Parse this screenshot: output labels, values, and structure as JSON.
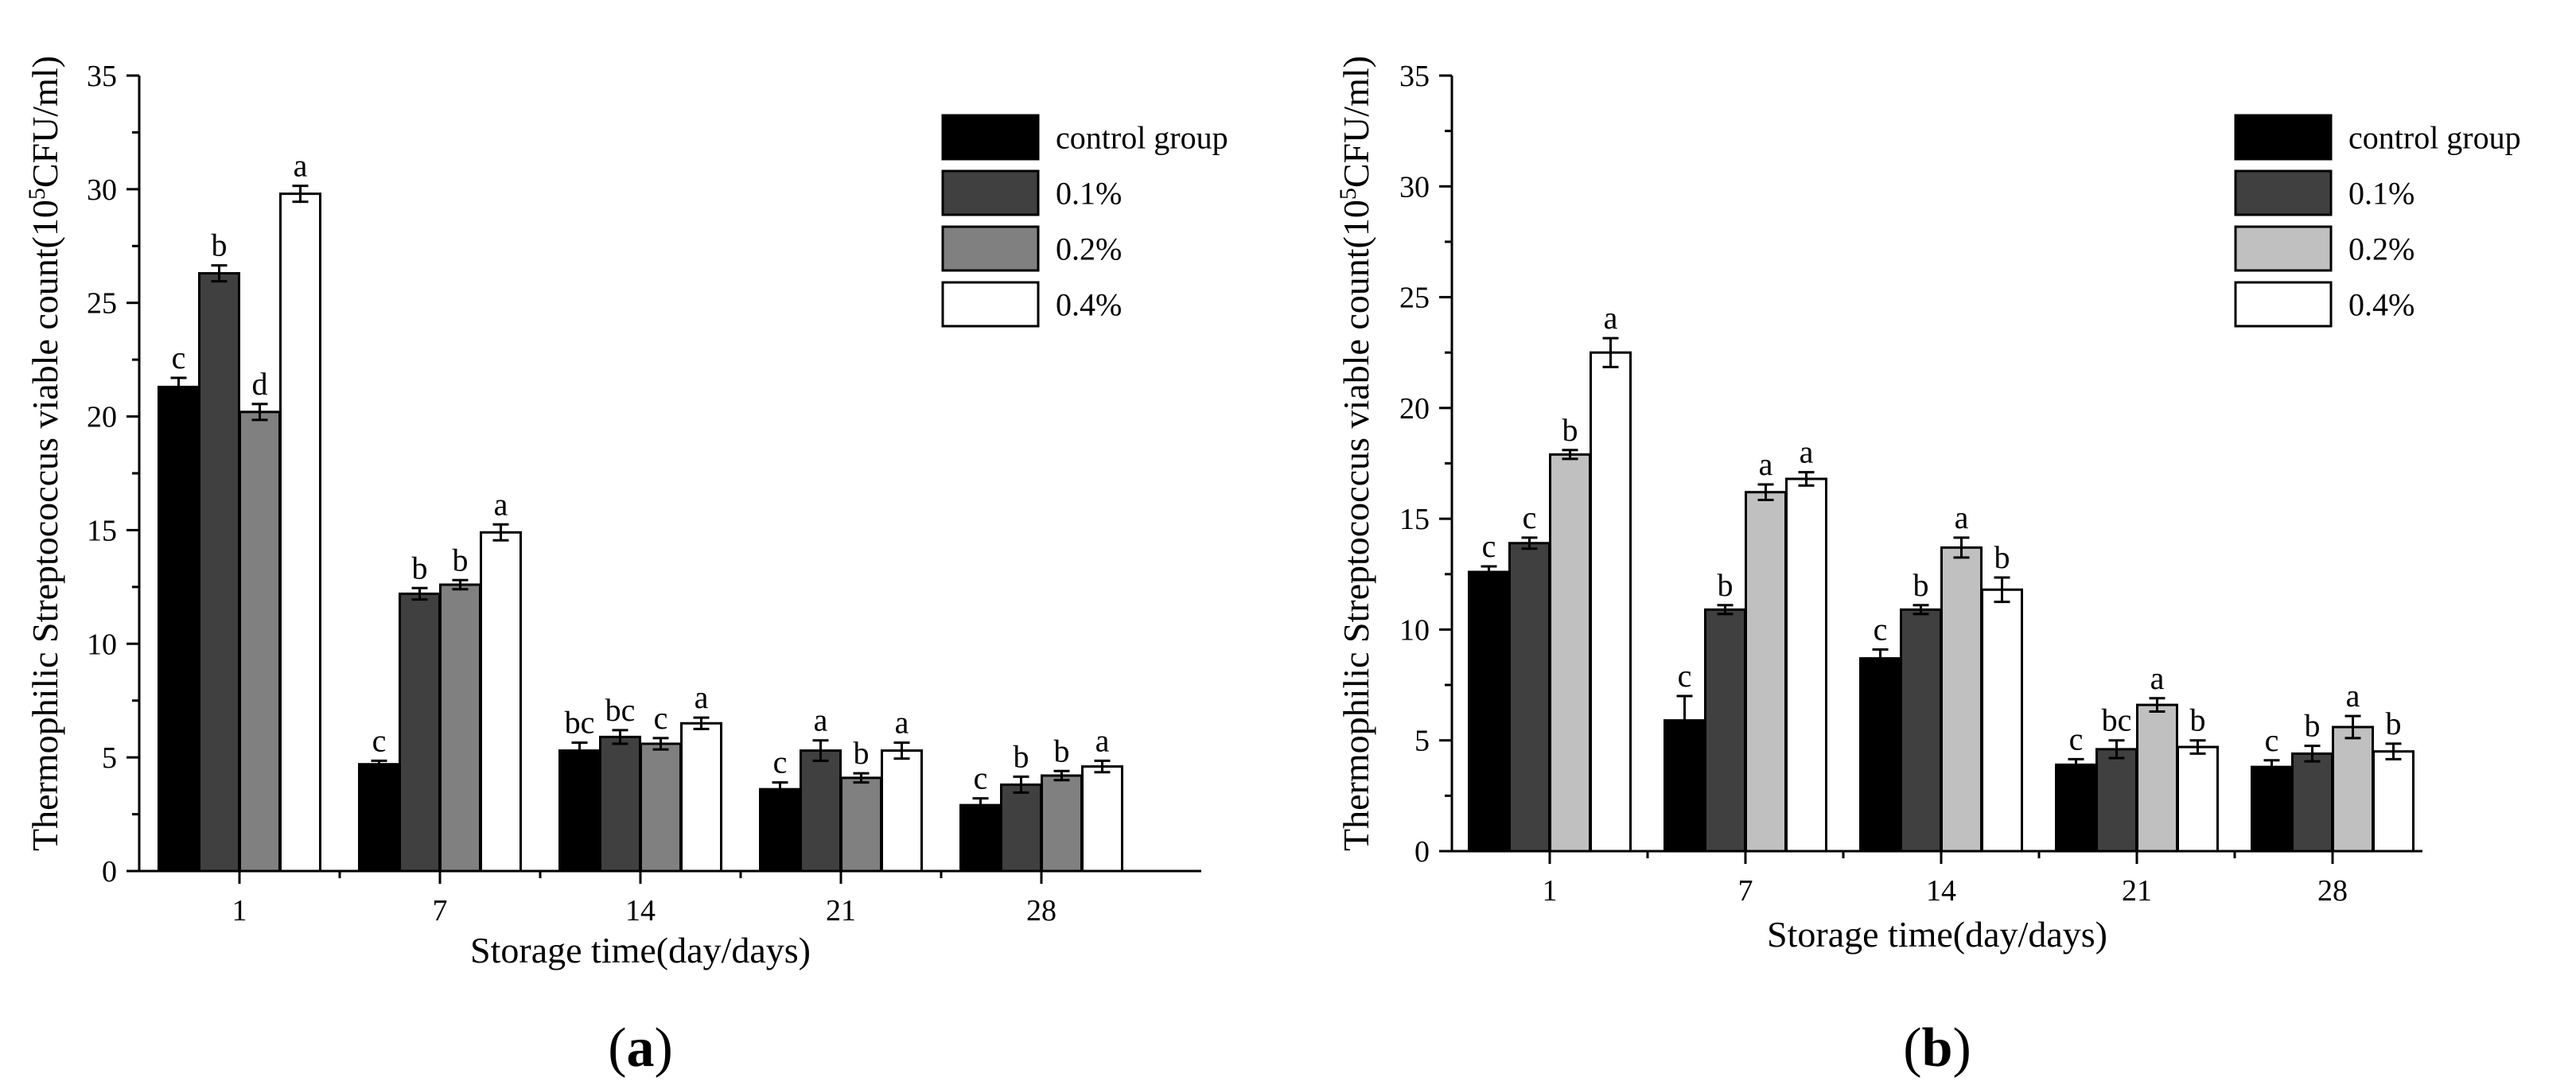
{
  "chart_data": [
    {
      "type": "bar",
      "panel_label": "a",
      "title": "",
      "xlabel": "Storage time(day/days)",
      "ylabel_pre": "Thermophilic Streptococcus viable count(10",
      "ylabel_sup": "5",
      "ylabel_post": "CFU/ml)",
      "ylim": [
        0,
        35
      ],
      "yticks": [
        "0",
        "5",
        "10",
        "15",
        "20",
        "25",
        "30",
        "35"
      ],
      "categories": [
        "1",
        "7",
        "14",
        "21",
        "28"
      ],
      "legend_position": "top-right",
      "series": [
        {
          "name": "control group",
          "color": "#000000",
          "values": [
            21.3,
            4.7,
            5.3,
            3.6,
            2.9
          ],
          "errors": [
            0.4,
            0.15,
            0.35,
            0.3,
            0.3
          ],
          "letters": [
            "c",
            "c",
            "bc",
            "c",
            "c"
          ]
        },
        {
          "name": "0.1%",
          "color": "#404040",
          "values": [
            26.3,
            12.2,
            5.9,
            5.3,
            3.8
          ],
          "errors": [
            0.35,
            0.25,
            0.3,
            0.45,
            0.35
          ],
          "letters": [
            "b",
            "b",
            "bc",
            "a",
            "b"
          ]
        },
        {
          "name": "0.2%",
          "color": "#808080",
          "values": [
            20.2,
            12.6,
            5.6,
            4.1,
            4.2
          ],
          "errors": [
            0.35,
            0.2,
            0.25,
            0.2,
            0.2
          ],
          "letters": [
            "d",
            "b",
            "c",
            "b",
            "b"
          ]
        },
        {
          "name": "0.4%",
          "color": "#ffffff",
          "values": [
            29.8,
            14.9,
            6.5,
            5.3,
            4.6
          ],
          "errors": [
            0.35,
            0.35,
            0.25,
            0.35,
            0.25
          ],
          "letters": [
            "a",
            "a",
            "a",
            "a",
            "a"
          ]
        }
      ]
    },
    {
      "type": "bar",
      "panel_label": "b",
      "title": "",
      "xlabel": "Storage time(day/days)",
      "ylabel_pre": "Thermophilic Streptococcus viable count(10",
      "ylabel_sup": "5",
      "ylabel_post": "CFU/ml)",
      "ylim": [
        0,
        35
      ],
      "yticks": [
        "0",
        "5",
        "10",
        "15",
        "20",
        "25",
        "30",
        "35"
      ],
      "categories": [
        "1",
        "7",
        "14",
        "21",
        "28"
      ],
      "legend_position": "top-right",
      "series": [
        {
          "name": "control group",
          "color": "#000000",
          "values": [
            12.6,
            5.9,
            8.7,
            3.9,
            3.8
          ],
          "errors": [
            0.25,
            1.1,
            0.4,
            0.25,
            0.3
          ],
          "letters": [
            "c",
            "c",
            "c",
            "c",
            "c"
          ]
        },
        {
          "name": "0.1%",
          "color": "#404040",
          "values": [
            13.9,
            10.9,
            10.9,
            4.6,
            4.4
          ],
          "errors": [
            0.25,
            0.2,
            0.2,
            0.4,
            0.35
          ],
          "letters": [
            "c",
            "b",
            "b",
            "bc",
            "b"
          ]
        },
        {
          "name": "0.2%",
          "color": "#c0c0c0",
          "values": [
            17.9,
            16.2,
            13.7,
            6.6,
            5.6
          ],
          "errors": [
            0.2,
            0.35,
            0.45,
            0.3,
            0.5
          ],
          "letters": [
            "b",
            "a",
            "a",
            "a",
            "a"
          ]
        },
        {
          "name": "0.4%",
          "color": "#ffffff",
          "values": [
            22.5,
            16.8,
            11.8,
            4.7,
            4.5
          ],
          "errors": [
            0.65,
            0.3,
            0.55,
            0.3,
            0.35
          ],
          "letters": [
            "a",
            "a",
            "b",
            "b",
            "b"
          ]
        }
      ]
    }
  ]
}
